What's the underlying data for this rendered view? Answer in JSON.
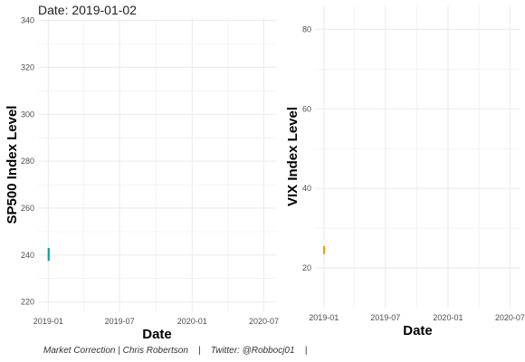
{
  "header": {
    "date_prefix": "Date:",
    "date_value": "2019-01-02"
  },
  "caption": {
    "project": "Market Correction",
    "author": "Chris Robertson",
    "twitter_label": "Twitter:",
    "handle": "@Robbocj01",
    "separator": "|"
  },
  "colors": {
    "sp500": "#00a3a3",
    "vix": "#e69f00",
    "grid": "#ebebeb"
  },
  "chart_data": [
    {
      "type": "line",
      "xlabel": "Date",
      "ylabel": "SP500 Index Level",
      "x_ticks": [
        "2019-01",
        "2019-07",
        "2020-01",
        "2020-07"
      ],
      "xlim": [
        "2018-12-06",
        "2020-08-01"
      ],
      "y_ticks": [
        220,
        240,
        260,
        280,
        300,
        320,
        340
      ],
      "ylim": [
        216,
        341
      ],
      "grid": true,
      "series": [
        {
          "color": "#00a3a3",
          "points": [
            {
              "x": "2019-01-02",
              "y_low": 237.5,
              "y_high": 243
            }
          ]
        }
      ]
    },
    {
      "type": "line",
      "xlabel": "Date",
      "ylabel": "VIX Index Level",
      "x_ticks": [
        "2019-01",
        "2019-07",
        "2020-01",
        "2020-07"
      ],
      "xlim": [
        "2018-12-06",
        "2020-08-01"
      ],
      "y_ticks": [
        20,
        40,
        60,
        80
      ],
      "ylim": [
        10,
        86
      ],
      "grid": true,
      "series": [
        {
          "color": "#e69f00",
          "points": [
            {
              "x": "2019-01-02",
              "y_low": 23.5,
              "y_high": 25.5
            }
          ]
        }
      ]
    }
  ]
}
